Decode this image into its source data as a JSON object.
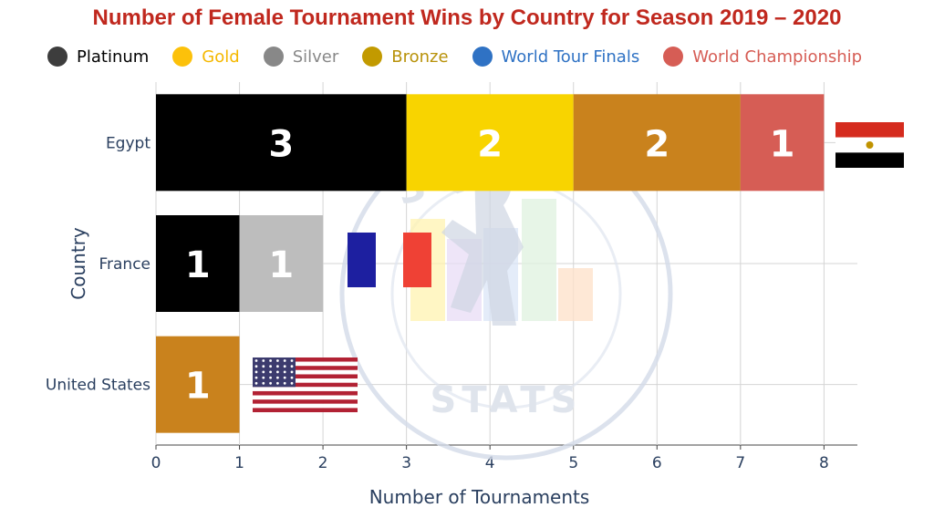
{
  "chart_data": {
    "type": "bar",
    "orientation": "horizontal",
    "stacked": true,
    "title": "Number of Female Tournament Wins by Country for Season 2019 – 2020",
    "xlabel": "Number of Tournaments",
    "ylabel": "Country",
    "xlim": [
      0,
      8.4
    ],
    "xticks": [
      "0",
      "1",
      "2",
      "3",
      "4",
      "5",
      "6",
      "7",
      "8"
    ],
    "grid": true,
    "legend_position": "top",
    "categories": [
      "Egypt",
      "France",
      "United States"
    ],
    "series": [
      {
        "name": "Platinum",
        "color": "#000000",
        "legend_color": "#3d3d3d",
        "text_color": "#000000",
        "values": [
          3,
          1,
          0
        ]
      },
      {
        "name": "Gold",
        "color": "#f8d400",
        "legend_color": "#fcc10a",
        "text_color": "#f5b800",
        "values": [
          2,
          0,
          0
        ]
      },
      {
        "name": "Silver",
        "color": "#bdbdbd",
        "legend_color": "#888888",
        "text_color": "#888888",
        "values": [
          0,
          1,
          0
        ]
      },
      {
        "name": "Bronze",
        "color": "#c9821d",
        "legend_color": "#c29a00",
        "text_color": "#b8920a",
        "values": [
          2,
          0,
          1
        ]
      },
      {
        "name": "World Tour Finals",
        "color": "#2f72c4",
        "legend_color": "#2f72c4",
        "text_color": "#2f72c4",
        "values": [
          0,
          0,
          0
        ]
      },
      {
        "name": "World Championship",
        "color": "#d65d55",
        "legend_color": "#d65d55",
        "text_color": "#d65d55",
        "values": [
          1,
          0,
          0
        ]
      }
    ],
    "flags": [
      {
        "country": "Egypt",
        "icon": "egypt-flag-icon"
      },
      {
        "country": "France",
        "icon": "france-flag-icon"
      },
      {
        "country": "United States",
        "icon": "usa-flag-icon"
      }
    ],
    "watermark": {
      "top_text": "SQUASH",
      "bottom_text": "STATS"
    }
  }
}
